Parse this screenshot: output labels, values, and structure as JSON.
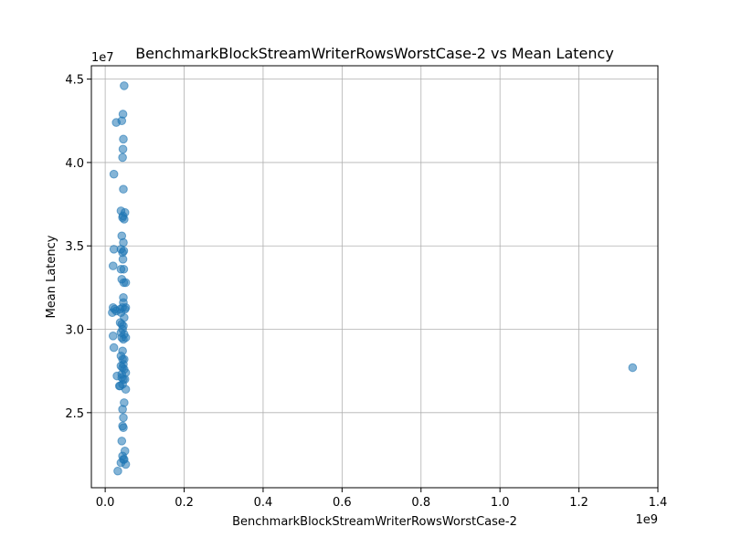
{
  "chart_data": {
    "type": "scatter",
    "title": "BenchmarkBlockStreamWriterRowsWorstCase-2 vs Mean Latency",
    "xlabel": "BenchmarkBlockStreamWriterRowsWorstCase-2",
    "ylabel": "Mean Latency",
    "x_offset_label": "1e9",
    "y_offset_label": "1e7",
    "x_scale": 1000000000,
    "y_scale": 10000000,
    "xlim": [
      -35000000,
      1400000000
    ],
    "ylim": [
      20500000,
      45800000
    ],
    "x_ticks": [
      0,
      200000000,
      400000000,
      600000000,
      800000000,
      1000000000,
      1200000000,
      1400000000
    ],
    "x_tick_labels": [
      "0.0",
      "0.2",
      "0.4",
      "0.6",
      "0.8",
      "1.0",
      "1.2",
      "1.4"
    ],
    "y_ticks": [
      25000000,
      30000000,
      35000000,
      40000000,
      45000000
    ],
    "y_tick_labels": [
      "2.5",
      "3.0",
      "3.5",
      "4.0",
      "4.5"
    ],
    "grid": true,
    "marker_color": "#1f77b4",
    "marker_alpha": 0.55,
    "series": [
      {
        "points": [
          [
            48000000,
            44600000
          ],
          [
            45000000,
            42900000
          ],
          [
            28000000,
            42400000
          ],
          [
            42000000,
            42500000
          ],
          [
            46000000,
            41400000
          ],
          [
            45000000,
            40800000
          ],
          [
            44000000,
            40300000
          ],
          [
            22000000,
            39300000
          ],
          [
            46000000,
            38400000
          ],
          [
            40000000,
            37100000
          ],
          [
            50000000,
            37000000
          ],
          [
            45000000,
            36800000
          ],
          [
            48000000,
            36600000
          ],
          [
            44000000,
            36700000
          ],
          [
            42000000,
            35600000
          ],
          [
            46000000,
            35200000
          ],
          [
            22000000,
            34800000
          ],
          [
            40000000,
            34800000
          ],
          [
            47000000,
            34700000
          ],
          [
            44000000,
            34600000
          ],
          [
            45000000,
            34200000
          ],
          [
            20000000,
            33800000
          ],
          [
            40000000,
            33600000
          ],
          [
            47000000,
            33600000
          ],
          [
            42000000,
            33000000
          ],
          [
            47000000,
            32800000
          ],
          [
            52000000,
            32800000
          ],
          [
            46000000,
            31900000
          ],
          [
            46000000,
            31600000
          ],
          [
            20000000,
            31300000
          ],
          [
            24000000,
            31200000
          ],
          [
            38000000,
            31200000
          ],
          [
            44000000,
            31300000
          ],
          [
            50000000,
            31200000
          ],
          [
            52000000,
            31300000
          ],
          [
            18000000,
            31000000
          ],
          [
            28000000,
            31100000
          ],
          [
            40000000,
            31000000
          ],
          [
            48000000,
            30700000
          ],
          [
            38000000,
            30400000
          ],
          [
            42000000,
            30300000
          ],
          [
            46000000,
            30200000
          ],
          [
            44000000,
            30000000
          ],
          [
            40000000,
            29800000
          ],
          [
            48000000,
            29700000
          ],
          [
            20000000,
            29600000
          ],
          [
            42000000,
            29500000
          ],
          [
            46000000,
            29400000
          ],
          [
            52000000,
            29500000
          ],
          [
            22000000,
            28900000
          ],
          [
            44000000,
            28700000
          ],
          [
            40000000,
            28400000
          ],
          [
            44000000,
            28200000
          ],
          [
            48000000,
            28200000
          ],
          [
            46000000,
            27900000
          ],
          [
            40000000,
            27800000
          ],
          [
            44000000,
            27700000
          ],
          [
            48000000,
            27600000
          ],
          [
            42000000,
            27300000
          ],
          [
            52000000,
            27400000
          ],
          [
            30000000,
            27200000
          ],
          [
            42000000,
            27100000
          ],
          [
            46000000,
            27000000
          ],
          [
            50000000,
            27000000
          ],
          [
            36000000,
            26600000
          ],
          [
            38000000,
            26600000
          ],
          [
            44000000,
            26700000
          ],
          [
            52000000,
            26400000
          ],
          [
            48000000,
            25600000
          ],
          [
            44000000,
            25200000
          ],
          [
            46000000,
            24700000
          ],
          [
            44000000,
            24200000
          ],
          [
            46000000,
            24100000
          ],
          [
            42000000,
            23300000
          ],
          [
            50000000,
            22700000
          ],
          [
            44000000,
            22400000
          ],
          [
            46000000,
            22200000
          ],
          [
            48000000,
            22200000
          ],
          [
            40000000,
            22000000
          ],
          [
            52000000,
            21900000
          ],
          [
            32000000,
            21500000
          ],
          [
            1336000000,
            27700000
          ]
        ]
      }
    ]
  }
}
